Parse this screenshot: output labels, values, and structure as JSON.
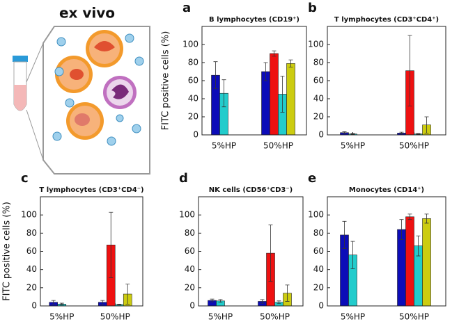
{
  "illustration": {
    "title": "ex vivo"
  },
  "chart_data": [
    {
      "type": "bar",
      "panel": "a",
      "title": "B lymphocytes (CD19⁺)",
      "ylabel": "FITC positive cells (%)",
      "categories": [
        "5%HP",
        "50%HP"
      ],
      "ylim": [
        0,
        120
      ],
      "yticks": [
        0,
        20,
        40,
        60,
        80,
        100
      ],
      "series": [
        {
          "color": "#0c0cb8",
          "values": [
            66,
            70
          ],
          "errors": [
            15,
            10
          ]
        },
        {
          "color": "#ee1111",
          "values": [
            null,
            90
          ],
          "errors": [
            null,
            3
          ]
        },
        {
          "color": "#22cccc",
          "values": [
            46,
            45
          ],
          "errors": [
            15,
            20
          ]
        },
        {
          "color": "#cccc10",
          "values": [
            0,
            79
          ],
          "errors": [
            0,
            4
          ]
        }
      ]
    },
    {
      "type": "bar",
      "panel": "b",
      "title": "T lymphocytes (CD3⁺CD4⁺)",
      "categories": [
        "5%HP",
        "50%HP"
      ],
      "ylim": [
        0,
        120
      ],
      "yticks": [
        0,
        20,
        40,
        60,
        80,
        100
      ],
      "series": [
        {
          "color": "#0c0cb8",
          "values": [
            2.5,
            2
          ],
          "errors": [
            1,
            1
          ]
        },
        {
          "color": "#ee1111",
          "values": [
            null,
            71
          ],
          "errors": [
            null,
            39
          ]
        },
        {
          "color": "#22cccc",
          "values": [
            1,
            1
          ],
          "errors": [
            0.5,
            0.5
          ]
        },
        {
          "color": "#cccc10",
          "values": [
            0,
            11
          ],
          "errors": [
            0,
            9
          ]
        }
      ]
    },
    {
      "type": "bar",
      "panel": "c",
      "title": "T lymphocytes (CD3⁺CD4⁻)",
      "ylabel": "FITC positive cells (%)",
      "categories": [
        "5%HP",
        "50%HP"
      ],
      "ylim": [
        0,
        120
      ],
      "yticks": [
        0,
        20,
        40,
        60,
        80,
        100
      ],
      "series": [
        {
          "color": "#0c0cb8",
          "values": [
            4,
            4
          ],
          "errors": [
            2,
            2
          ]
        },
        {
          "color": "#ee1111",
          "values": [
            null,
            67
          ],
          "errors": [
            null,
            36
          ]
        },
        {
          "color": "#22cccc",
          "values": [
            2,
            1.5
          ],
          "errors": [
            1,
            0.5
          ]
        },
        {
          "color": "#cccc10",
          "values": [
            0,
            13
          ],
          "errors": [
            0,
            11
          ]
        }
      ]
    },
    {
      "type": "bar",
      "panel": "d",
      "title": "NK cells (CD56⁺CD3⁻)",
      "categories": [
        "5%HP",
        "50%HP"
      ],
      "ylim": [
        0,
        120
      ],
      "yticks": [
        0,
        20,
        40,
        60,
        80,
        100
      ],
      "series": [
        {
          "color": "#0c0cb8",
          "values": [
            6,
            5
          ],
          "errors": [
            1.5,
            2
          ]
        },
        {
          "color": "#ee1111",
          "values": [
            null,
            58
          ],
          "errors": [
            null,
            31
          ]
        },
        {
          "color": "#22cccc",
          "values": [
            5.5,
            4
          ],
          "errors": [
            1.5,
            1.5
          ]
        },
        {
          "color": "#cccc10",
          "values": [
            0,
            14
          ],
          "errors": [
            0,
            9
          ]
        }
      ]
    },
    {
      "type": "bar",
      "panel": "e",
      "title": "Monocytes (CD14⁺)",
      "categories": [
        "5%HP",
        "50%HP"
      ],
      "ylim": [
        0,
        120
      ],
      "yticks": [
        0,
        20,
        40,
        60,
        80,
        100
      ],
      "series": [
        {
          "color": "#0c0cb8",
          "values": [
            78,
            84
          ],
          "errors": [
            15,
            11
          ]
        },
        {
          "color": "#ee1111",
          "values": [
            null,
            98
          ],
          "errors": [
            null,
            3
          ]
        },
        {
          "color": "#22cccc",
          "values": [
            56,
            66
          ],
          "errors": [
            15,
            11
          ]
        },
        {
          "color": "#cccc10",
          "values": [
            0,
            96
          ],
          "errors": [
            0,
            5
          ]
        }
      ]
    }
  ]
}
